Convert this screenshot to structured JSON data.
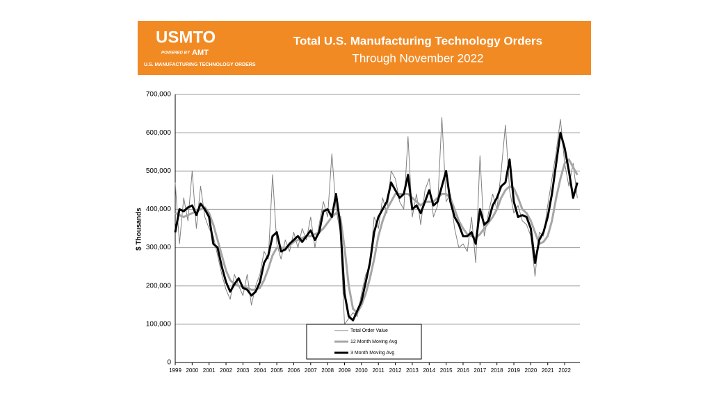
{
  "header": {
    "logo": "USMTO",
    "powered_by": "POWERED BY",
    "brand": "AMT",
    "tagline": "U.S. MANUFACTURING TECHNOLOGY ORDERS"
  },
  "chart_data": {
    "type": "line",
    "title": "Total U.S. Manufacturing Technology Orders",
    "subtitle": "Through November 2022",
    "y_label": "$ Thousands",
    "x": [
      1999,
      1999.25,
      1999.5,
      1999.75,
      2000,
      2000.25,
      2000.5,
      2000.75,
      2001,
      2001.25,
      2001.5,
      2001.75,
      2002,
      2002.25,
      2002.5,
      2002.75,
      2003,
      2003.25,
      2003.5,
      2003.75,
      2004,
      2004.25,
      2004.5,
      2004.75,
      2005,
      2005.25,
      2005.5,
      2005.75,
      2006,
      2006.25,
      2006.5,
      2006.75,
      2007,
      2007.25,
      2007.5,
      2007.75,
      2008,
      2008.25,
      2008.5,
      2008.75,
      2009,
      2009.25,
      2009.5,
      2009.75,
      2010,
      2010.25,
      2010.5,
      2010.75,
      2011,
      2011.25,
      2011.5,
      2011.75,
      2012,
      2012.25,
      2012.5,
      2012.75,
      2013,
      2013.25,
      2013.5,
      2013.75,
      2014,
      2014.25,
      2014.5,
      2014.75,
      2015,
      2015.25,
      2015.5,
      2015.75,
      2016,
      2016.25,
      2016.5,
      2016.75,
      2017,
      2017.25,
      2017.5,
      2017.75,
      2018,
      2018.25,
      2018.5,
      2018.75,
      2019,
      2019.25,
      2019.5,
      2019.75,
      2020,
      2020.25,
      2020.5,
      2020.75,
      2021,
      2021.25,
      2021.5,
      2021.75,
      2022,
      2022.25,
      2022.5,
      2022.75
    ],
    "series": [
      {
        "name": "Total Order Value",
        "color": "#7f7f7f",
        "width": 1,
        "values": [
          470000,
          310000,
          430000,
          370000,
          500000,
          350000,
          460000,
          380000,
          350000,
          330000,
          280000,
          230000,
          190000,
          165000,
          230000,
          200000,
          175000,
          230000,
          150000,
          200000,
          230000,
          290000,
          270000,
          490000,
          310000,
          270000,
          320000,
          290000,
          340000,
          300000,
          350000,
          320000,
          380000,
          300000,
          360000,
          420000,
          380000,
          545000,
          400000,
          340000,
          100000,
          115000,
          130000,
          120000,
          180000,
          230000,
          250000,
          380000,
          350000,
          430000,
          390000,
          500000,
          480000,
          420000,
          400000,
          590000,
          380000,
          440000,
          360000,
          450000,
          480000,
          380000,
          410000,
          640000,
          420000,
          440000,
          350000,
          300000,
          310000,
          290000,
          380000,
          260000,
          540000,
          330000,
          390000,
          440000,
          400000,
          500000,
          620000,
          450000,
          390000,
          410000,
          370000,
          360000,
          330000,
          225000,
          340000,
          330000,
          410000,
          480000,
          550000,
          635000,
          520000,
          460000,
          520000,
          430000
        ]
      },
      {
        "name": "12 Month Moving Avg",
        "color": "#a6a6a6",
        "width": 3,
        "values": [
          390000,
          385000,
          380000,
          385000,
          390000,
          395000,
          400000,
          405000,
          390000,
          360000,
          320000,
          280000,
          240000,
          215000,
          205000,
          200000,
          198000,
          195000,
          190000,
          190000,
          195000,
          215000,
          245000,
          280000,
          300000,
          300000,
          300000,
          305000,
          315000,
          320000,
          325000,
          330000,
          330000,
          335000,
          340000,
          350000,
          365000,
          380000,
          390000,
          380000,
          300000,
          200000,
          140000,
          130000,
          150000,
          180000,
          220000,
          270000,
          330000,
          370000,
          400000,
          420000,
          440000,
          440000,
          440000,
          440000,
          430000,
          420000,
          410000,
          420000,
          420000,
          420000,
          430000,
          440000,
          440000,
          430000,
          400000,
          370000,
          350000,
          335000,
          330000,
          325000,
          335000,
          350000,
          365000,
          380000,
          400000,
          430000,
          450000,
          460000,
          455000,
          430000,
          400000,
          390000,
          370000,
          340000,
          310000,
          315000,
          330000,
          370000,
          430000,
          480000,
          520000,
          530000,
          510000,
          490000
        ]
      },
      {
        "name": "3 Month Moving Avg",
        "color": "#000000",
        "width": 3,
        "values": [
          340000,
          400000,
          395000,
          405000,
          410000,
          385000,
          415000,
          400000,
          380000,
          310000,
          300000,
          250000,
          210000,
          185000,
          205000,
          220000,
          195000,
          190000,
          175000,
          185000,
          210000,
          260000,
          280000,
          330000,
          340000,
          290000,
          295000,
          310000,
          320000,
          330000,
          315000,
          330000,
          345000,
          320000,
          340000,
          395000,
          400000,
          380000,
          440000,
          360000,
          180000,
          120000,
          110000,
          135000,
          160000,
          210000,
          260000,
          340000,
          380000,
          400000,
          420000,
          470000,
          450000,
          430000,
          440000,
          490000,
          400000,
          410000,
          390000,
          420000,
          450000,
          410000,
          420000,
          460000,
          500000,
          420000,
          380000,
          360000,
          330000,
          330000,
          340000,
          310000,
          400000,
          360000,
          370000,
          410000,
          430000,
          460000,
          470000,
          530000,
          420000,
          380000,
          385000,
          380000,
          350000,
          260000,
          320000,
          340000,
          380000,
          440000,
          520000,
          600000,
          560000,
          500000,
          430000,
          470000
        ]
      }
    ],
    "xlim": [
      1999,
      2022.9
    ],
    "xticks": [
      1999,
      2000,
      2001,
      2002,
      2003,
      2004,
      2005,
      2006,
      2007,
      2008,
      2009,
      2010,
      2011,
      2012,
      2013,
      2014,
      2015,
      2016,
      2017,
      2018,
      2019,
      2020,
      2021,
      2022
    ],
    "ylim": [
      0,
      700000
    ],
    "yticks": [
      0,
      {
        "value": 100000,
        "label": "100,000"
      },
      {
        "value": 200000,
        "label": "200,000"
      },
      {
        "value": 300000,
        "label": "300,000"
      },
      {
        "value": 400000,
        "label": "400,000"
      },
      {
        "value": 500000,
        "label": "500,000"
      },
      {
        "value": 600000,
        "label": "600,000"
      },
      {
        "value": 700000,
        "label": "700,000"
      }
    ],
    "grid": true
  }
}
